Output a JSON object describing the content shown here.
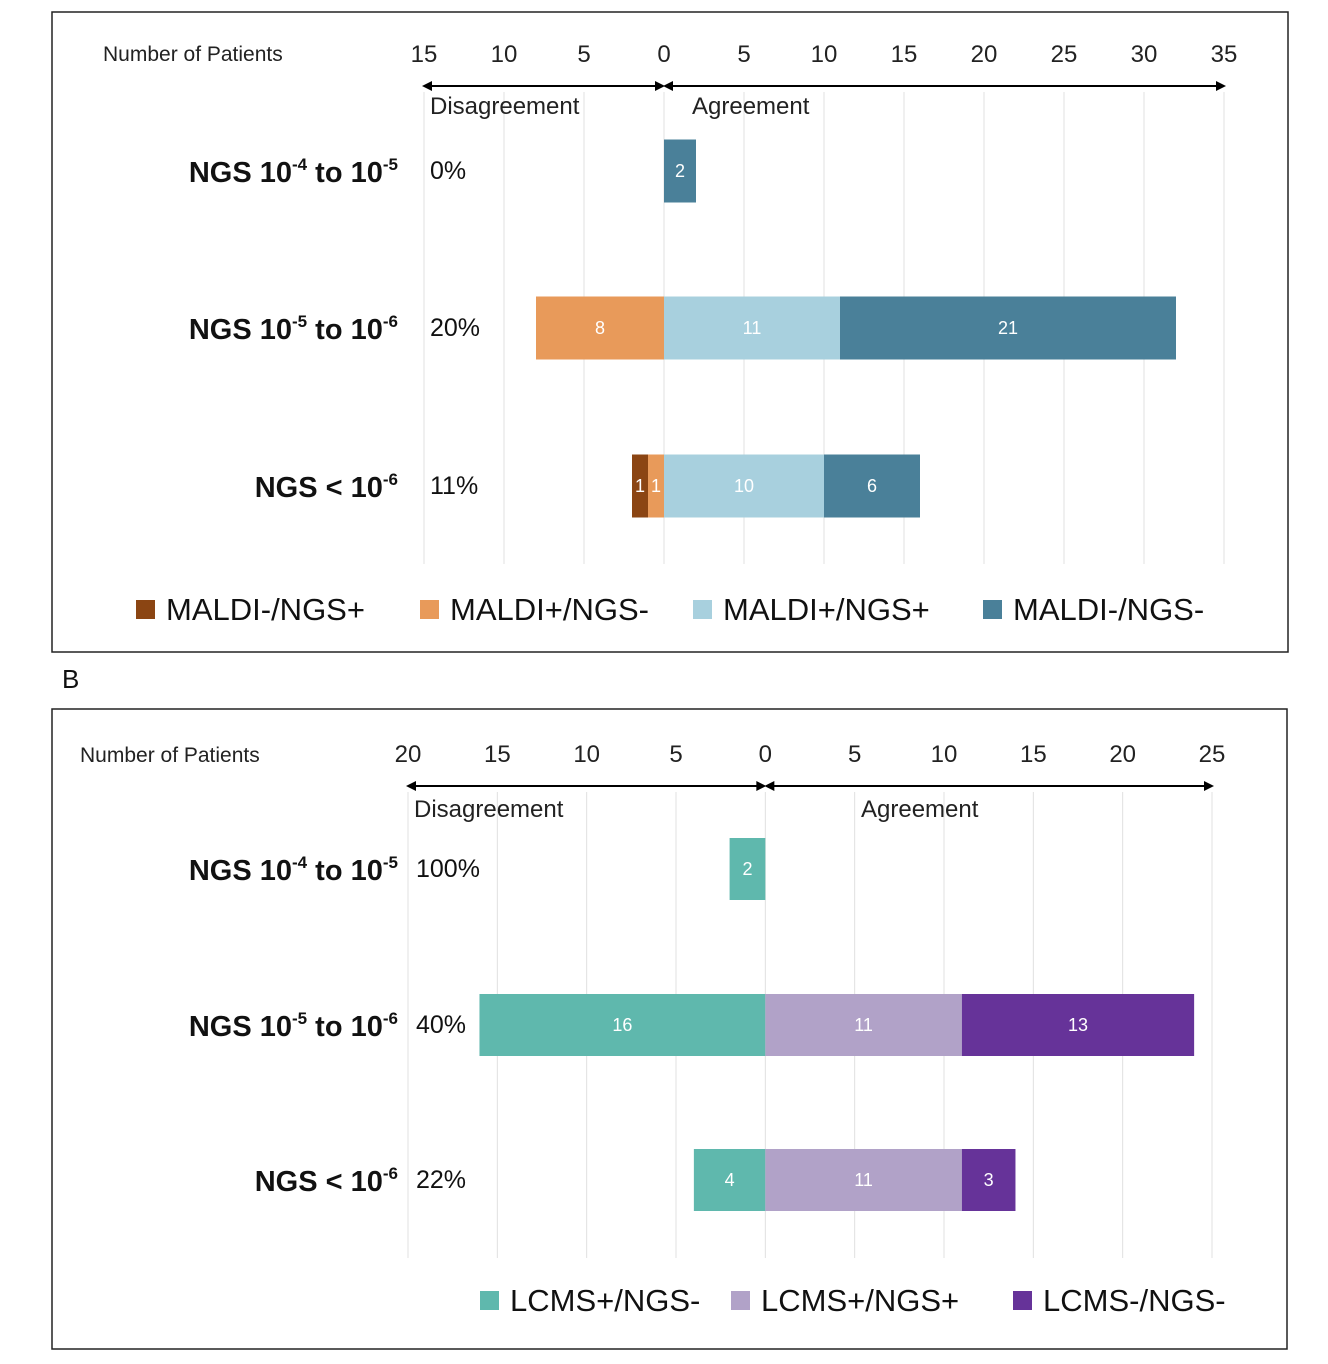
{
  "panel_b_letter": "B",
  "chart_data": [
    {
      "type": "bar",
      "orientation": "horizontal-diverging",
      "axis_title": "Number of Patients",
      "disagreement_label": "Disagreement",
      "agreement_label": "Agreement",
      "x_ticks_left": [
        15,
        10,
        5,
        0
      ],
      "x_ticks_right": [
        5,
        10,
        15,
        20,
        25,
        30,
        35
      ],
      "xlim": [
        -15,
        35
      ],
      "categories": [
        {
          "prefix": "NGS 10",
          "exp1": "-4",
          "mid": " to 10",
          "exp2": "-5",
          "percent": "0%"
        },
        {
          "prefix": "NGS 10",
          "exp1": "-5",
          "mid": " to 10",
          "exp2": "-6",
          "percent": "20%"
        },
        {
          "prefix": "NGS < 10",
          "exp1": "-6",
          "mid": "",
          "exp2": "",
          "percent": "11%"
        }
      ],
      "series": [
        {
          "name": "MALDI-/NGS+",
          "side": "disagreement",
          "color": "#8B4513",
          "values": [
            0,
            0,
            1
          ]
        },
        {
          "name": "MALDI+/NGS-",
          "side": "disagreement",
          "color": "#E89A5A",
          "values": [
            0,
            8,
            1
          ]
        },
        {
          "name": "MALDI+/NGS+",
          "side": "agreement",
          "color": "#A8D0DE",
          "values": [
            0,
            11,
            10
          ]
        },
        {
          "name": "MALDI-/NGS-",
          "side": "agreement",
          "color": "#4A8099",
          "values": [
            2,
            21,
            6
          ]
        }
      ],
      "legend": [
        "MALDI-/NGS+",
        "MALDI+/NGS-",
        "MALDI+/NGS+",
        "MALDI-/NGS-"
      ]
    },
    {
      "type": "bar",
      "orientation": "horizontal-diverging",
      "axis_title": "Number of Patients",
      "disagreement_label": "Disagreement",
      "agreement_label": "Agreement",
      "x_ticks_left": [
        20,
        15,
        10,
        5,
        0
      ],
      "x_ticks_right": [
        5,
        10,
        15,
        20,
        25
      ],
      "xlim": [
        -20,
        25
      ],
      "categories": [
        {
          "prefix": "NGS 10",
          "exp1": "-4",
          "mid": " to 10",
          "exp2": "-5",
          "percent": "100%"
        },
        {
          "prefix": "NGS 10",
          "exp1": "-5",
          "mid": " to 10",
          "exp2": "-6",
          "percent": "40%"
        },
        {
          "prefix": "NGS < 10",
          "exp1": "-6",
          "mid": "",
          "exp2": "",
          "percent": "22%"
        }
      ],
      "series": [
        {
          "name": "LCMS+/NGS-",
          "side": "disagreement",
          "color": "#5FB8AD",
          "values": [
            2,
            16,
            4
          ]
        },
        {
          "name": "LCMS+/NGS+",
          "side": "agreement",
          "color": "#B1A2C8",
          "values": [
            0,
            11,
            11
          ]
        },
        {
          "name": "LCMS-/NGS-",
          "side": "agreement",
          "color": "#663399",
          "values": [
            0,
            13,
            3
          ]
        }
      ],
      "legend": [
        "LCMS+/NGS-",
        "LCMS+/NGS+",
        "LCMS-/NGS-"
      ]
    }
  ]
}
